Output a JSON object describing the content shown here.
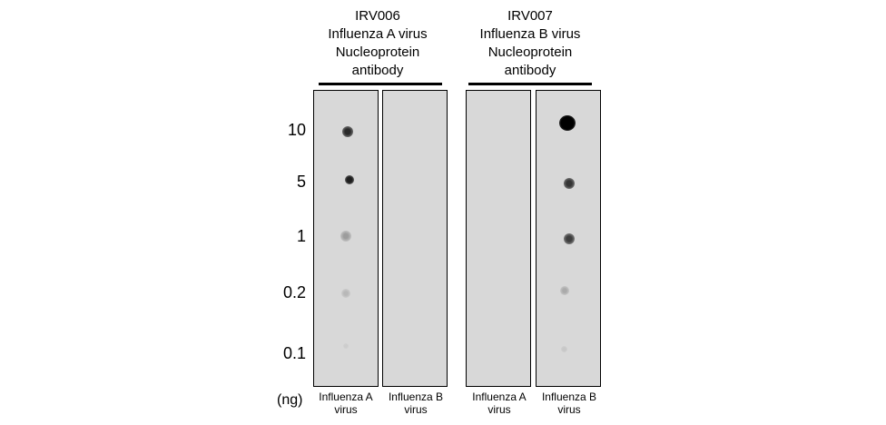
{
  "headers": [
    {
      "lines": [
        "IRV006",
        "Influenza A virus",
        "Nucleoprotein",
        "antibody"
      ]
    },
    {
      "lines": [
        "IRV007",
        "Influenza B virus",
        "Nucleoprotein",
        "antibody"
      ]
    }
  ],
  "y_labels": [
    "10",
    "5",
    "1",
    "0.2",
    "0.1"
  ],
  "unit_label": "(ng)",
  "lanes": [
    {
      "line1": "Influenza A",
      "line2": "virus"
    },
    {
      "line1": "Influenza B",
      "line2": "virus"
    },
    {
      "line1": "Influenza A",
      "line2": "virus"
    },
    {
      "line1": "Influenza B",
      "line2": "virus"
    }
  ],
  "colors": {
    "membrane": "#d8d8d8",
    "border": "#000000"
  }
}
